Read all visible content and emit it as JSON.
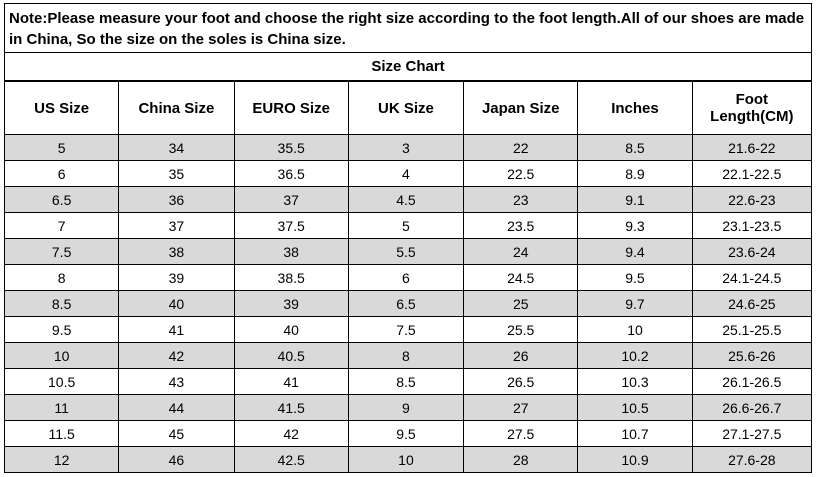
{
  "note": "Note:Please measure your foot and choose the right size according to the foot length.All of our shoes are made in China, So the size on the soles is China size.",
  "title": "Size Chart",
  "headers": [
    "US Size",
    "China Size",
    "EURO Size",
    "UK Size",
    "Japan Size",
    "Inches",
    "Foot Length(CM)"
  ],
  "rows": [
    [
      "5",
      "34",
      "35.5",
      "3",
      "22",
      "8.5",
      "21.6-22"
    ],
    [
      "6",
      "35",
      "36.5",
      "4",
      "22.5",
      "8.9",
      "22.1-22.5"
    ],
    [
      "6.5",
      "36",
      "37",
      "4.5",
      "23",
      "9.1",
      "22.6-23"
    ],
    [
      "7",
      "37",
      "37.5",
      "5",
      "23.5",
      "9.3",
      "23.1-23.5"
    ],
    [
      "7.5",
      "38",
      "38",
      "5.5",
      "24",
      "9.4",
      "23.6-24"
    ],
    [
      "8",
      "39",
      "38.5",
      "6",
      "24.5",
      "9.5",
      "24.1-24.5"
    ],
    [
      "8.5",
      "40",
      "39",
      "6.5",
      "25",
      "9.7",
      "24.6-25"
    ],
    [
      "9.5",
      "41",
      "40",
      "7.5",
      "25.5",
      "10",
      "25.1-25.5"
    ],
    [
      "10",
      "42",
      "40.5",
      "8",
      "26",
      "10.2",
      "25.6-26"
    ],
    [
      "10.5",
      "43",
      "41",
      "8.5",
      "26.5",
      "10.3",
      "26.1-26.5"
    ],
    [
      "11",
      "44",
      "41.5",
      "9",
      "27",
      "10.5",
      "26.6-26.7"
    ],
    [
      "11.5",
      "45",
      "42",
      "9.5",
      "27.5",
      "10.7",
      "27.1-27.5"
    ],
    [
      "12",
      "46",
      "42.5",
      "10",
      "28",
      "10.9",
      "27.6-28"
    ]
  ],
  "colors": {
    "shaded_row": "#d9d9d9",
    "plain_row": "#ffffff",
    "border": "#000000"
  }
}
